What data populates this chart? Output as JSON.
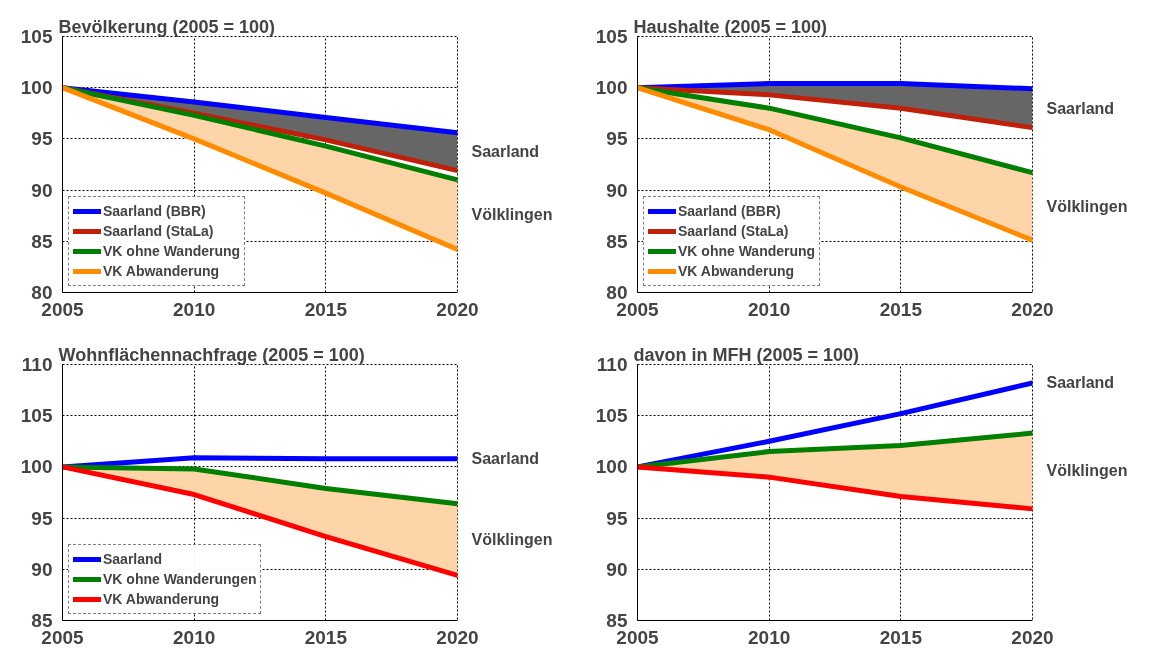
{
  "chart_data": [
    {
      "type": "line",
      "title": "Bevölkerung (2005 = 100)",
      "x": [
        2005,
        2010,
        2015,
        2020
      ],
      "xlim": [
        2005,
        2020
      ],
      "xticks": [
        2005,
        2010,
        2015,
        2020
      ],
      "ylim": [
        80,
        105
      ],
      "yticks": [
        80,
        85,
        90,
        95,
        100,
        105
      ],
      "grid": true,
      "legend": "bottom left",
      "series": [
        {
          "name": "Saarland (BBR)",
          "color": "#0000ff",
          "values": [
            100,
            98.6,
            97.1,
            95.6
          ]
        },
        {
          "name": "Saarland (StaLa)",
          "color": "#c0200a",
          "values": [
            100,
            97.5,
            94.9,
            91.9
          ],
          "lower": [
            100,
            97.5,
            94.9,
            91.9
          ],
          "upper": [
            100,
            98.6,
            97.1,
            95.6
          ]
        },
        {
          "name": "VK ohne Wanderung",
          "color": "#007f00",
          "values": [
            100,
            97.3,
            94.3,
            91.0
          ],
          "lower": [
            100,
            95.0,
            89.7,
            84.2
          ],
          "upper": [
            100,
            97.3,
            94.3,
            91.0
          ]
        },
        {
          "name": "VK Abwanderung",
          "color": "#ff8c00",
          "values": [
            100,
            95.0,
            89.7,
            84.2
          ]
        }
      ],
      "annotations": [
        "Saarland",
        "Völklingen"
      ]
    },
    {
      "type": "line",
      "title": "Haushalte (2005 = 100)",
      "x": [
        2005,
        2010,
        2015,
        2020
      ],
      "xlim": [
        2005,
        2020
      ],
      "xticks": [
        2005,
        2010,
        2015,
        2020
      ],
      "ylim": [
        80,
        105
      ],
      "yticks": [
        80,
        85,
        90,
        95,
        100,
        105
      ],
      "grid": true,
      "legend": "bottom left",
      "series": [
        {
          "name": "Saarland (BBR)",
          "color": "#0000ff",
          "values": [
            100,
            100.4,
            100.4,
            99.9
          ]
        },
        {
          "name": "Saarland (StaLa)",
          "color": "#c0200a",
          "values": [
            100,
            99.3,
            98.0,
            96.1
          ],
          "lower": [
            100,
            99.3,
            98.0,
            96.1
          ],
          "upper": [
            100,
            100.4,
            100.4,
            99.9
          ]
        },
        {
          "name": "VK ohne Wanderung",
          "color": "#007f00",
          "values": [
            100,
            98.0,
            95.1,
            91.7
          ],
          "lower": [
            100,
            95.9,
            90.3,
            85.1
          ],
          "upper": [
            100,
            98.0,
            95.1,
            91.7
          ]
        },
        {
          "name": "VK Abwanderung",
          "color": "#ff8c00",
          "values": [
            100,
            95.9,
            90.3,
            85.1
          ]
        }
      ],
      "annotations": [
        "Saarland",
        "Völklingen"
      ]
    },
    {
      "type": "line",
      "title": "Wohnflächennachfrage (2005 = 100)",
      "x": [
        2005,
        2010,
        2015,
        2020
      ],
      "xlim": [
        2005,
        2020
      ],
      "xticks": [
        2005,
        2010,
        2015,
        2020
      ],
      "ylim": [
        85,
        110
      ],
      "yticks": [
        85,
        90,
        95,
        100,
        105,
        110
      ],
      "grid": true,
      "legend": "bottom left",
      "series": [
        {
          "name": "Saarland",
          "color": "#0000ff",
          "values": [
            100,
            100.9,
            100.8,
            100.8
          ]
        },
        {
          "name": "VK ohne Wanderungen",
          "color": "#007f00",
          "values": [
            100,
            99.8,
            97.9,
            96.4
          ],
          "lower": [
            100,
            97.3,
            93.2,
            89.4
          ],
          "upper": [
            100,
            99.8,
            97.9,
            96.4
          ]
        },
        {
          "name": "VK Abwanderung",
          "color": "#ff0000",
          "values": [
            100,
            97.3,
            93.2,
            89.4
          ]
        }
      ],
      "annotations": [
        "Saarland",
        "Völklingen"
      ]
    },
    {
      "type": "line",
      "title": "davon in MFH (2005 = 100)",
      "x": [
        2005,
        2010,
        2015,
        2020
      ],
      "xlim": [
        2005,
        2020
      ],
      "xticks": [
        2005,
        2010,
        2015,
        2020
      ],
      "ylim": [
        85,
        110
      ],
      "yticks": [
        85,
        90,
        95,
        100,
        105,
        110
      ],
      "grid": true,
      "legend": false,
      "series": [
        {
          "color": "#0000ff",
          "values": [
            100,
            102.5,
            105.2,
            108.2
          ]
        },
        {
          "color": "#007f00",
          "values": [
            100,
            101.5,
            102.1,
            103.3
          ],
          "lower": [
            100,
            99.0,
            97.1,
            95.9
          ],
          "upper": [
            100,
            101.5,
            102.1,
            103.3
          ]
        },
        {
          "color": "#ff0000",
          "values": [
            100,
            99.0,
            97.1,
            95.9
          ]
        }
      ],
      "annotations": [
        "Saarland",
        "Völklingen"
      ]
    }
  ]
}
